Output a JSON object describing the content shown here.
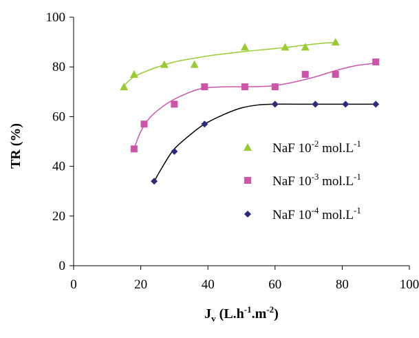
{
  "chart_data": {
    "type": "scatter",
    "title": "",
    "xlabel": {
      "base": "J",
      "sub": "v",
      "rest": [
        {
          "t": " (L.h",
          "sup": false
        },
        {
          "t": "-1",
          "sup": true
        },
        {
          "t": ".m",
          "sup": false
        },
        {
          "t": "-2",
          "sup": true
        },
        {
          "t": ")",
          "sup": false
        }
      ]
    },
    "ylabel": "TR (%)",
    "xlim": [
      0,
      100
    ],
    "ylim": [
      0,
      100
    ],
    "xticks": [
      "0",
      "20",
      "40",
      "60",
      "80",
      "100"
    ],
    "yticks": [
      "0",
      "20",
      "40",
      "60",
      "80",
      "100"
    ],
    "grid": false,
    "legend_position": "right-middle",
    "series": [
      {
        "name_parts": [
          {
            "t": "NaF 10",
            "sup": false
          },
          {
            "t": "-2",
            "sup": true
          },
          {
            "t": " mol.L",
            "sup": false
          },
          {
            "t": "-1",
            "sup": true
          }
        ],
        "marker": "triangle",
        "color": "#99CC33",
        "x": [
          15,
          18,
          27,
          36,
          51,
          63,
          69,
          78
        ],
        "y": [
          72,
          77,
          81,
          81,
          88,
          88,
          88,
          90
        ],
        "trend_x": [
          15,
          18,
          24,
          30,
          36,
          42,
          51,
          57,
          63,
          69,
          75,
          78
        ],
        "trend_y": [
          72.5,
          76,
          79.5,
          82,
          83.5,
          84.8,
          86.2,
          87,
          87.8,
          88.8,
          89.6,
          89.8
        ]
      },
      {
        "name_parts": [
          {
            "t": "NaF 10",
            "sup": false
          },
          {
            "t": "-3",
            "sup": true
          },
          {
            "t": " mol.L",
            "sup": false
          },
          {
            "t": "-1",
            "sup": true
          }
        ],
        "marker": "square",
        "color": "#CC55AA",
        "x": [
          18,
          21,
          30,
          39,
          51,
          60,
          69,
          78,
          90
        ],
        "y": [
          47,
          57,
          65,
          72,
          72,
          72,
          77,
          77,
          82
        ],
        "trend_x": [
          18,
          20,
          23,
          27,
          30,
          35,
          39,
          45,
          51,
          57,
          60,
          66,
          72,
          78,
          84,
          90
        ],
        "trend_y": [
          47,
          54,
          60,
          64.5,
          67,
          70,
          71.5,
          72,
          72,
          72.2,
          72.5,
          74,
          76,
          78.5,
          80.5,
          81.5
        ]
      },
      {
        "name_parts": [
          {
            "t": "NaF 10",
            "sup": false
          },
          {
            "t": "-4",
            "sup": true
          },
          {
            "t": " mol.L",
            "sup": false
          },
          {
            "t": "-1",
            "sup": true
          }
        ],
        "marker": "diamond",
        "color": "#2B2B7A",
        "x": [
          24,
          30,
          39,
          60,
          72,
          81,
          90
        ],
        "y": [
          34,
          46,
          57,
          65,
          65,
          65,
          65
        ],
        "trend_x": [
          24,
          27,
          30,
          35,
          39,
          45,
          50,
          55,
          60,
          66,
          72,
          81,
          90
        ],
        "trend_y": [
          34,
          41,
          47,
          53,
          57,
          61,
          63.5,
          64.7,
          65,
          65,
          65,
          65,
          65
        ]
      }
    ]
  }
}
